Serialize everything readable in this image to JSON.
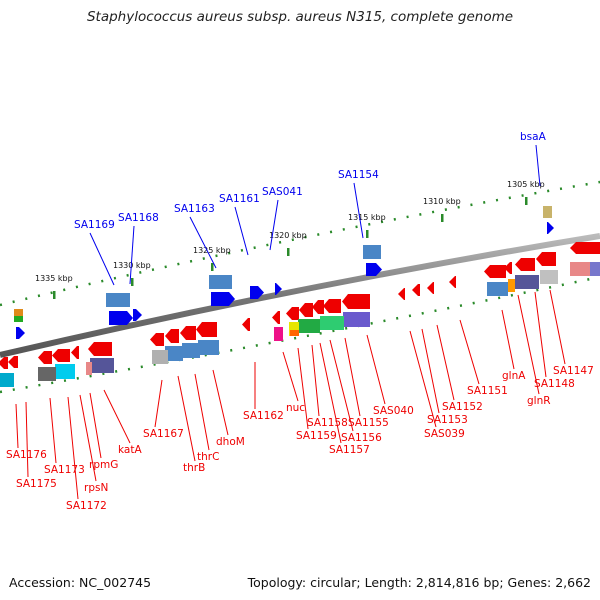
{
  "title": "Staphylococcus aureus subsp. aureus N315, complete genome",
  "footer": {
    "accession": "Accession: NC_002745",
    "topology": "Topology: circular; Length: 2,814,816 bp; Genes: 2,662"
  },
  "colors": {
    "forward_gene": "#0000ee",
    "reverse_gene": "#ee0000",
    "backbone": "#888888",
    "tick": "#2a8a2a"
  },
  "kbp_ticks": [
    "1305 kbp",
    "1310 kbp",
    "1315 kbp",
    "1320 kbp",
    "1325 kbp",
    "1330 kbp",
    "1335 kbp"
  ],
  "forward_genes": [
    "bsaA",
    "SA1154",
    "SAS041",
    "SA1161",
    "SA1163",
    "SA1168",
    "SA1169"
  ],
  "reverse_genes": [
    "SA1147",
    "SA1148",
    "glnR",
    "glnA",
    "SA1151",
    "SA1152",
    "SA1153",
    "SAS039",
    "SAS040",
    "SA1155",
    "SA1156",
    "SA1157",
    "SA1158",
    "SA1159",
    "nuc",
    "SA1162",
    "dhoM",
    "thrC",
    "thrB",
    "SA1167",
    "katA",
    "rpmG",
    "rpsN",
    "SA1172",
    "SA1173",
    "SA1175",
    "SA1176"
  ]
}
